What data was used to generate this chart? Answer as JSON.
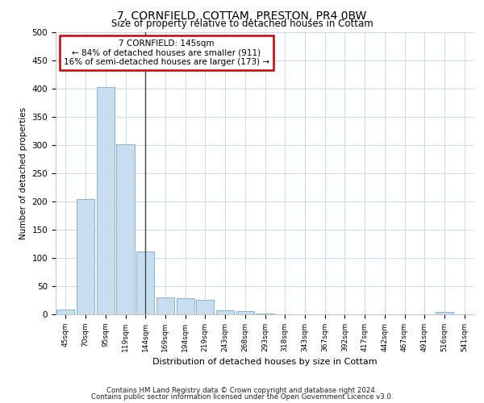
{
  "title": "7, CORNFIELD, COTTAM, PRESTON, PR4 0BW",
  "subtitle": "Size of property relative to detached houses in Cottam",
  "xlabel": "Distribution of detached houses by size in Cottam",
  "ylabel": "Number of detached properties",
  "categories": [
    "45sqm",
    "70sqm",
    "95sqm",
    "119sqm",
    "144sqm",
    "169sqm",
    "194sqm",
    "219sqm",
    "243sqm",
    "268sqm",
    "293sqm",
    "318sqm",
    "343sqm",
    "367sqm",
    "392sqm",
    "417sqm",
    "442sqm",
    "467sqm",
    "491sqm",
    "516sqm",
    "541sqm"
  ],
  "values": [
    8,
    205,
    403,
    302,
    112,
    30,
    29,
    26,
    7,
    6,
    2,
    0,
    0,
    0,
    0,
    0,
    0,
    0,
    0,
    4,
    0
  ],
  "bar_color": "#c8ddef",
  "bar_edge_color": "#7aaac8",
  "highlight_bar_index": 4,
  "highlight_line_color": "#444444",
  "annotation_text": "7 CORNFIELD: 145sqm\n← 84% of detached houses are smaller (911)\n16% of semi-detached houses are larger (173) →",
  "annotation_box_color": "#ffffff",
  "annotation_box_edge_color": "#cc0000",
  "ylim": [
    0,
    500
  ],
  "yticks": [
    0,
    50,
    100,
    150,
    200,
    250,
    300,
    350,
    400,
    450,
    500
  ],
  "footer_line1": "Contains HM Land Registry data © Crown copyright and database right 2024.",
  "footer_line2": "Contains public sector information licensed under the Open Government Licence v3.0.",
  "background_color": "#ffffff",
  "grid_color": "#ccd8e8",
  "fig_width": 6.0,
  "fig_height": 5.0
}
